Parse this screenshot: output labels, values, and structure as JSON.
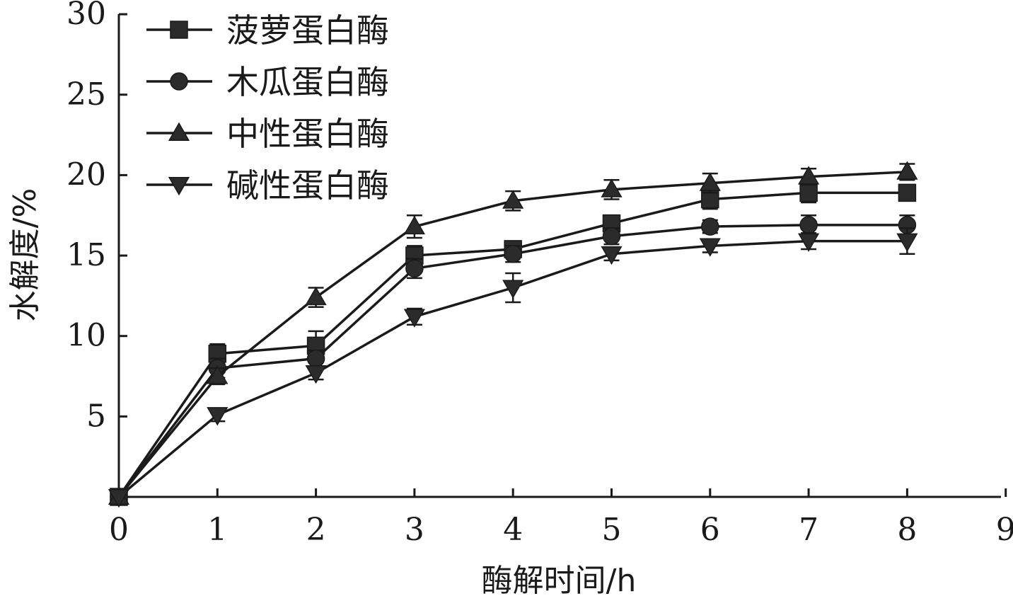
{
  "chart_data": {
    "type": "line",
    "title": "",
    "xlabel": "酶解时间/h",
    "ylabel": "水解度/%",
    "xlim": [
      0,
      9
    ],
    "ylim": [
      0,
      30
    ],
    "x_ticks": [
      0,
      1,
      2,
      3,
      4,
      5,
      6,
      7,
      8,
      9
    ],
    "y_ticks": [
      5,
      10,
      15,
      20,
      25,
      30
    ],
    "grid": false,
    "legend_position": "top-left",
    "line_color": "#1a1a1a",
    "marker_color": "#2b2b2b",
    "x": [
      0,
      1,
      2,
      3,
      4,
      5,
      6,
      7,
      8
    ],
    "series": [
      {
        "name": "菠萝蛋白酶",
        "marker": "square",
        "values": [
          0,
          8.9,
          9.4,
          15.0,
          15.4,
          17.0,
          18.5,
          18.9,
          18.9
        ],
        "errors": [
          0,
          0.6,
          0.9,
          0.6,
          0.5,
          0.5,
          0.6,
          0.6,
          0.5
        ]
      },
      {
        "name": "木瓜蛋白酶",
        "marker": "circle",
        "values": [
          0,
          8.0,
          8.6,
          14.2,
          15.1,
          16.2,
          16.8,
          16.9,
          16.9
        ],
        "errors": [
          0,
          0.6,
          0.5,
          0.6,
          0.5,
          0.5,
          0.4,
          0.6,
          0.6
        ]
      },
      {
        "name": "中性蛋白酶",
        "marker": "triangle-up",
        "values": [
          0,
          7.5,
          12.4,
          16.8,
          18.4,
          19.1,
          19.5,
          19.9,
          20.2
        ],
        "errors": [
          0,
          0.5,
          0.6,
          0.7,
          0.6,
          0.6,
          0.6,
          0.5,
          0.5
        ]
      },
      {
        "name": "碱性蛋白酶",
        "marker": "triangle-down",
        "values": [
          0,
          5.1,
          7.7,
          11.2,
          13.0,
          15.1,
          15.6,
          15.9,
          15.9
        ],
        "errors": [
          0,
          0.4,
          0.4,
          0.5,
          0.9,
          0.4,
          0.4,
          0.5,
          0.8
        ]
      }
    ]
  }
}
